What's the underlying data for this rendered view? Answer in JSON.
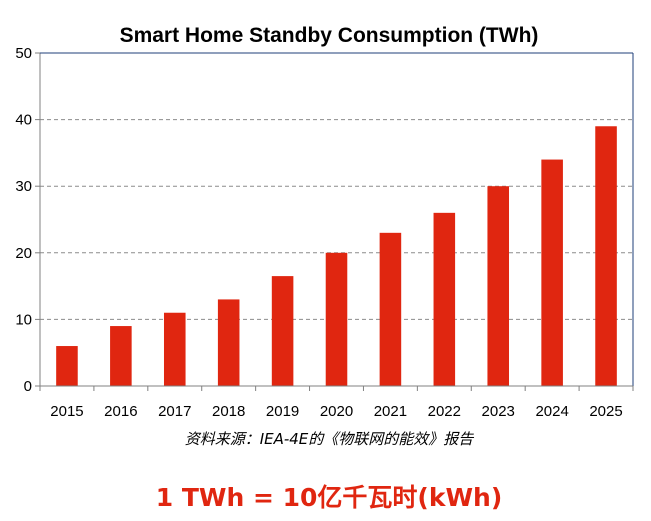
{
  "chart_data": {
    "type": "bar",
    "title": "Smart Home Standby Consumption (TWh)",
    "categories": [
      "2015",
      "2016",
      "2017",
      "2018",
      "2019",
      "2020",
      "2021",
      "2022",
      "2023",
      "2024",
      "2025"
    ],
    "values": [
      6,
      9,
      11,
      13,
      16.5,
      20,
      23,
      26,
      30,
      34,
      39
    ],
    "ylim": [
      0,
      50
    ],
    "yticks": [
      "0",
      "10",
      "20",
      "30",
      "40",
      "50"
    ],
    "grid": true,
    "bar_color": "#e02610"
  },
  "source_note": "资料来源：IEA-4E的《物联网的能效》报告",
  "footer_note": "1 TWh = 10亿千瓦时(kWh)"
}
